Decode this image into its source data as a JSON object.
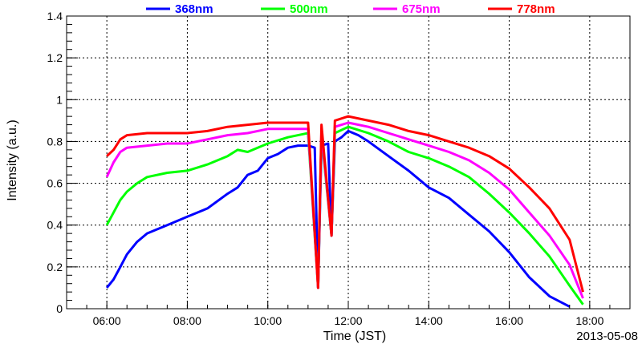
{
  "chart_data": {
    "type": "line",
    "xlabel": "Time (JST)",
    "ylabel": "Intensity (a.u.)",
    "date_label": "2013-05-08",
    "xlim": [
      "05:00",
      "19:00"
    ],
    "ylim": [
      0,
      1.4
    ],
    "x_ticks": [
      "06:00",
      "08:00",
      "10:00",
      "12:00",
      "14:00",
      "16:00",
      "18:00"
    ],
    "y_ticks": [
      "0",
      "0.2",
      "0.4",
      "0.6",
      "0.8",
      "1",
      "1.2",
      "1.4"
    ],
    "grid": true,
    "legend_position": "top",
    "series": [
      {
        "name": "368nm",
        "color": "#0000ff",
        "points": [
          [
            "06:00",
            0.1
          ],
          [
            "06:10",
            0.14
          ],
          [
            "06:20",
            0.2
          ],
          [
            "06:30",
            0.26
          ],
          [
            "06:45",
            0.32
          ],
          [
            "07:00",
            0.36
          ],
          [
            "07:30",
            0.4
          ],
          [
            "08:00",
            0.44
          ],
          [
            "08:30",
            0.48
          ],
          [
            "09:00",
            0.55
          ],
          [
            "09:15",
            0.58
          ],
          [
            "09:30",
            0.64
          ],
          [
            "09:45",
            0.66
          ],
          [
            "10:00",
            0.72
          ],
          [
            "10:15",
            0.74
          ],
          [
            "10:30",
            0.77
          ],
          [
            "10:45",
            0.78
          ],
          [
            "11:00",
            0.78
          ],
          [
            "11:10",
            0.77
          ],
          [
            "11:15",
            0.1
          ],
          [
            "11:20",
            0.78
          ],
          [
            "11:30",
            0.79
          ],
          [
            "11:35",
            0.35
          ],
          [
            "11:40",
            0.8
          ],
          [
            "11:50",
            0.82
          ],
          [
            "12:00",
            0.85
          ],
          [
            "12:15",
            0.83
          ],
          [
            "12:30",
            0.8
          ],
          [
            "13:00",
            0.73
          ],
          [
            "13:30",
            0.66
          ],
          [
            "14:00",
            0.58
          ],
          [
            "14:30",
            0.53
          ],
          [
            "15:00",
            0.45
          ],
          [
            "15:30",
            0.37
          ],
          [
            "16:00",
            0.27
          ],
          [
            "16:30",
            0.15
          ],
          [
            "17:00",
            0.06
          ],
          [
            "17:30",
            0.01
          ]
        ]
      },
      {
        "name": "500nm",
        "color": "#00ff00",
        "points": [
          [
            "06:00",
            0.4
          ],
          [
            "06:10",
            0.46
          ],
          [
            "06:20",
            0.52
          ],
          [
            "06:30",
            0.56
          ],
          [
            "06:45",
            0.6
          ],
          [
            "07:00",
            0.63
          ],
          [
            "07:30",
            0.65
          ],
          [
            "08:00",
            0.66
          ],
          [
            "08:30",
            0.69
          ],
          [
            "09:00",
            0.73
          ],
          [
            "09:15",
            0.76
          ],
          [
            "09:30",
            0.75
          ],
          [
            "10:00",
            0.79
          ],
          [
            "10:30",
            0.82
          ],
          [
            "11:00",
            0.84
          ],
          [
            "11:15",
            0.1
          ],
          [
            "11:20",
            0.83
          ],
          [
            "11:35",
            0.35
          ],
          [
            "11:40",
            0.84
          ],
          [
            "12:00",
            0.87
          ],
          [
            "12:30",
            0.84
          ],
          [
            "13:00",
            0.8
          ],
          [
            "13:30",
            0.75
          ],
          [
            "14:00",
            0.72
          ],
          [
            "14:30",
            0.68
          ],
          [
            "15:00",
            0.63
          ],
          [
            "15:30",
            0.55
          ],
          [
            "16:00",
            0.46
          ],
          [
            "16:30",
            0.36
          ],
          [
            "17:00",
            0.25
          ],
          [
            "17:30",
            0.11
          ],
          [
            "17:50",
            0.02
          ]
        ]
      },
      {
        "name": "675nm",
        "color": "#ff00ff",
        "points": [
          [
            "06:00",
            0.63
          ],
          [
            "06:10",
            0.7
          ],
          [
            "06:20",
            0.75
          ],
          [
            "06:30",
            0.77
          ],
          [
            "07:00",
            0.78
          ],
          [
            "07:30",
            0.79
          ],
          [
            "08:00",
            0.79
          ],
          [
            "08:30",
            0.81
          ],
          [
            "09:00",
            0.83
          ],
          [
            "09:30",
            0.84
          ],
          [
            "10:00",
            0.86
          ],
          [
            "10:30",
            0.86
          ],
          [
            "11:00",
            0.86
          ],
          [
            "11:15",
            0.1
          ],
          [
            "11:20",
            0.85
          ],
          [
            "11:35",
            0.35
          ],
          [
            "11:40",
            0.87
          ],
          [
            "12:00",
            0.89
          ],
          [
            "12:30",
            0.87
          ],
          [
            "13:00",
            0.84
          ],
          [
            "13:30",
            0.81
          ],
          [
            "14:00",
            0.78
          ],
          [
            "14:30",
            0.75
          ],
          [
            "15:00",
            0.71
          ],
          [
            "15:30",
            0.65
          ],
          [
            "16:00",
            0.57
          ],
          [
            "16:30",
            0.46
          ],
          [
            "17:00",
            0.35
          ],
          [
            "17:30",
            0.21
          ],
          [
            "17:50",
            0.05
          ]
        ]
      },
      {
        "name": "778nm",
        "color": "#ff0000",
        "points": [
          [
            "06:00",
            0.73
          ],
          [
            "06:10",
            0.76
          ],
          [
            "06:20",
            0.81
          ],
          [
            "06:30",
            0.83
          ],
          [
            "07:00",
            0.84
          ],
          [
            "07:30",
            0.84
          ],
          [
            "08:00",
            0.84
          ],
          [
            "08:30",
            0.85
          ],
          [
            "09:00",
            0.87
          ],
          [
            "09:30",
            0.88
          ],
          [
            "10:00",
            0.89
          ],
          [
            "10:30",
            0.89
          ],
          [
            "11:00",
            0.89
          ],
          [
            "11:15",
            0.1
          ],
          [
            "11:20",
            0.88
          ],
          [
            "11:35",
            0.35
          ],
          [
            "11:40",
            0.9
          ],
          [
            "12:00",
            0.92
          ],
          [
            "12:30",
            0.9
          ],
          [
            "13:00",
            0.88
          ],
          [
            "13:30",
            0.85
          ],
          [
            "14:00",
            0.83
          ],
          [
            "14:30",
            0.8
          ],
          [
            "15:00",
            0.77
          ],
          [
            "15:30",
            0.73
          ],
          [
            "16:00",
            0.67
          ],
          [
            "16:30",
            0.58
          ],
          [
            "17:00",
            0.48
          ],
          [
            "17:30",
            0.33
          ],
          [
            "17:50",
            0.08
          ]
        ]
      }
    ]
  }
}
